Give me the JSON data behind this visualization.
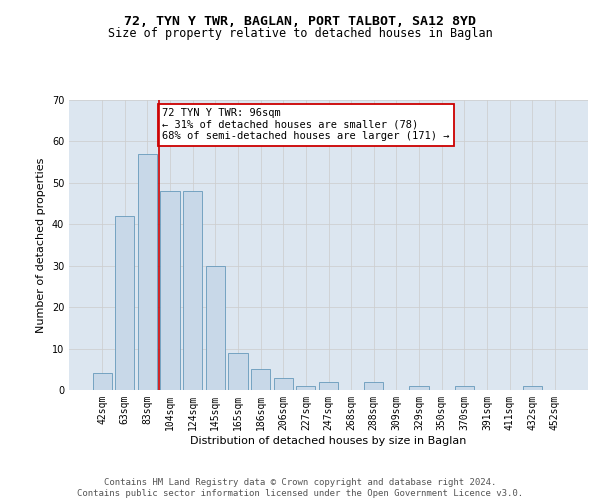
{
  "title": "72, TYN Y TWR, BAGLAN, PORT TALBOT, SA12 8YD",
  "subtitle": "Size of property relative to detached houses in Baglan",
  "xlabel": "Distribution of detached houses by size in Baglan",
  "ylabel": "Number of detached properties",
  "categories": [
    "42sqm",
    "63sqm",
    "83sqm",
    "104sqm",
    "124sqm",
    "145sqm",
    "165sqm",
    "186sqm",
    "206sqm",
    "227sqm",
    "247sqm",
    "268sqm",
    "288sqm",
    "309sqm",
    "329sqm",
    "350sqm",
    "370sqm",
    "391sqm",
    "411sqm",
    "432sqm",
    "452sqm"
  ],
  "values": [
    4,
    42,
    57,
    48,
    48,
    30,
    9,
    5,
    3,
    1,
    2,
    0,
    2,
    0,
    1,
    0,
    1,
    0,
    0,
    1,
    0
  ],
  "bar_color": "#c8d8e8",
  "bar_edge_color": "#6699bb",
  "vline_x": 2.5,
  "vline_color": "#cc0000",
  "annotation_text": "72 TYN Y TWR: 96sqm\n← 31% of detached houses are smaller (78)\n68% of semi-detached houses are larger (171) →",
  "annotation_box_color": "#ffffff",
  "annotation_box_edge": "#cc0000",
  "ylim": [
    0,
    70
  ],
  "yticks": [
    0,
    10,
    20,
    30,
    40,
    50,
    60,
    70
  ],
  "grid_color": "#cccccc",
  "bg_color": "#dce6f0",
  "footer": "Contains HM Land Registry data © Crown copyright and database right 2024.\nContains public sector information licensed under the Open Government Licence v3.0.",
  "title_fontsize": 9.5,
  "subtitle_fontsize": 8.5,
  "xlabel_fontsize": 8,
  "ylabel_fontsize": 8,
  "tick_fontsize": 7,
  "annot_fontsize": 7.5,
  "footer_fontsize": 6.5
}
